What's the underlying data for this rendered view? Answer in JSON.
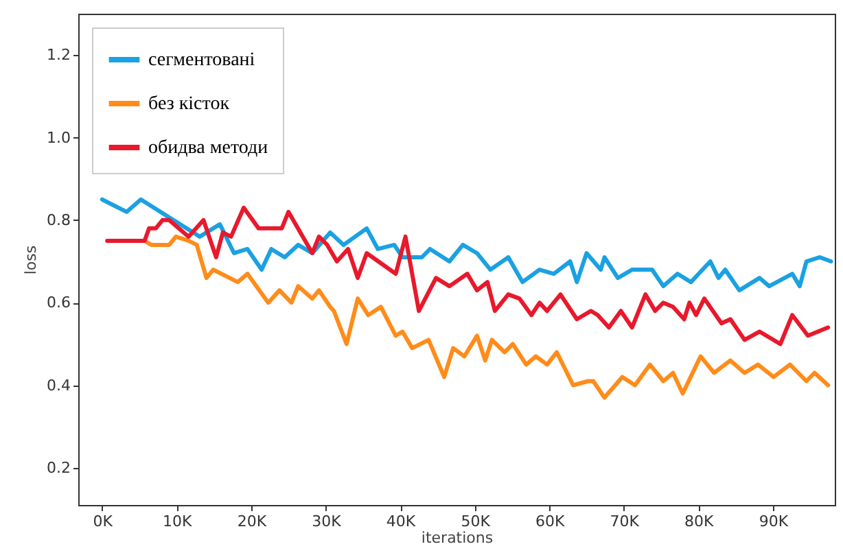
{
  "chart_data": {
    "type": "line",
    "xlabel": "iterations",
    "ylabel": "loss",
    "xlim": [
      -3200,
      98300
    ],
    "ylim": [
      0.11,
      1.3
    ],
    "xticks": [
      {
        "value": 0,
        "label": "0K"
      },
      {
        "value": 10000,
        "label": "10K"
      },
      {
        "value": 20000,
        "label": "20K"
      },
      {
        "value": 30000,
        "label": "30K"
      },
      {
        "value": 40000,
        "label": "40K"
      },
      {
        "value": 50000,
        "label": "50K"
      },
      {
        "value": 60000,
        "label": "60K"
      },
      {
        "value": 70000,
        "label": "70K"
      },
      {
        "value": 80000,
        "label": "80K"
      },
      {
        "value": 90000,
        "label": "90K"
      }
    ],
    "yticks": [
      0.2,
      0.4,
      0.6,
      0.8,
      {
        "value": 1,
        "label": "1.0"
      },
      1.2
    ],
    "grid": false,
    "legend": "top left",
    "line_style": "solid",
    "series": [
      {
        "name": "сегментовані",
        "color": "#1ba1e2",
        "x": [
          0,
          3300,
          5200,
          13100,
          15800,
          17700,
          19500,
          21400,
          22700,
          24500,
          26300,
          28200,
          30600,
          32400,
          35500,
          37000,
          39200,
          40300,
          42900,
          44000,
          46600,
          48400,
          50300,
          52100,
          54500,
          56400,
          58700,
          60600,
          62800,
          63700,
          65000,
          66900,
          67400,
          69200,
          71100,
          73800,
          75300,
          77200,
          79000,
          81600,
          82700,
          83600,
          85500,
          88200,
          89500,
          92600,
          93600,
          94500,
          96300,
          97800
        ],
        "values": [
          0.85,
          0.82,
          0.85,
          0.76,
          0.79,
          0.72,
          0.73,
          0.68,
          0.73,
          0.71,
          0.74,
          0.72,
          0.77,
          0.74,
          0.78,
          0.73,
          0.74,
          0.71,
          0.71,
          0.73,
          0.7,
          0.74,
          0.72,
          0.68,
          0.71,
          0.65,
          0.68,
          0.67,
          0.7,
          0.65,
          0.72,
          0.68,
          0.71,
          0.66,
          0.68,
          0.68,
          0.64,
          0.67,
          0.65,
          0.7,
          0.66,
          0.68,
          0.63,
          0.66,
          0.64,
          0.67,
          0.64,
          0.7,
          0.71,
          0.7
        ]
      },
      {
        "name": "без кісток",
        "color": "#ff8c1a",
        "x": [
          700,
          5700,
          6600,
          9000,
          9900,
          11600,
          12700,
          14000,
          14900,
          18200,
          19500,
          22300,
          23800,
          25400,
          26300,
          28200,
          29100,
          30600,
          31100,
          32800,
          34300,
          35700,
          37400,
          39400,
          40300,
          41600,
          43800,
          45900,
          47100,
          48600,
          50300,
          51400,
          52300,
          54000,
          55100,
          56900,
          58200,
          59700,
          61000,
          63200,
          65200,
          65900,
          67400,
          69800,
          71500,
          73500,
          75300,
          76600,
          77900,
          80300,
          82100,
          84300,
          86200,
          88000,
          90100,
          92300,
          94500,
          95600,
          97400
        ],
        "values": [
          0.75,
          0.75,
          0.74,
          0.74,
          0.76,
          0.75,
          0.74,
          0.66,
          0.68,
          0.65,
          0.67,
          0.6,
          0.63,
          0.6,
          0.64,
          0.61,
          0.63,
          0.59,
          0.58,
          0.5,
          0.61,
          0.57,
          0.59,
          0.52,
          0.53,
          0.49,
          0.51,
          0.42,
          0.49,
          0.47,
          0.52,
          0.46,
          0.51,
          0.48,
          0.5,
          0.45,
          0.47,
          0.45,
          0.48,
          0.4,
          0.41,
          0.41,
          0.37,
          0.42,
          0.4,
          0.45,
          0.41,
          0.43,
          0.38,
          0.47,
          0.43,
          0.46,
          0.43,
          0.45,
          0.42,
          0.45,
          0.41,
          0.43,
          0.4
        ]
      },
      {
        "name": "обидва методи",
        "color": "#e8192c",
        "x": [
          700,
          5700,
          6300,
          7200,
          8100,
          9000,
          11600,
          13600,
          15300,
          16200,
          17300,
          19000,
          21000,
          24100,
          25000,
          28200,
          29100,
          30200,
          31500,
          33000,
          34300,
          35500,
          39400,
          40700,
          42500,
          44800,
          46600,
          49000,
          50300,
          51700,
          52700,
          54500,
          56000,
          57600,
          58700,
          59700,
          61500,
          63700,
          65600,
          66500,
          68000,
          69600,
          71100,
          72900,
          74200,
          75300,
          76600,
          78100,
          78800,
          79700,
          80800,
          83100,
          84300,
          86200,
          88200,
          91000,
          92600,
          94700,
          97400
        ],
        "values": [
          0.75,
          0.75,
          0.78,
          0.78,
          0.8,
          0.8,
          0.76,
          0.8,
          0.71,
          0.77,
          0.76,
          0.83,
          0.78,
          0.78,
          0.82,
          0.72,
          0.76,
          0.74,
          0.7,
          0.73,
          0.66,
          0.72,
          0.67,
          0.76,
          0.58,
          0.66,
          0.64,
          0.67,
          0.63,
          0.65,
          0.58,
          0.62,
          0.61,
          0.57,
          0.6,
          0.58,
          0.62,
          0.56,
          0.58,
          0.57,
          0.54,
          0.58,
          0.54,
          0.62,
          0.58,
          0.6,
          0.59,
          0.56,
          0.6,
          0.57,
          0.61,
          0.55,
          0.56,
          0.51,
          0.53,
          0.5,
          0.57,
          0.52,
          0.54
        ]
      }
    ]
  }
}
